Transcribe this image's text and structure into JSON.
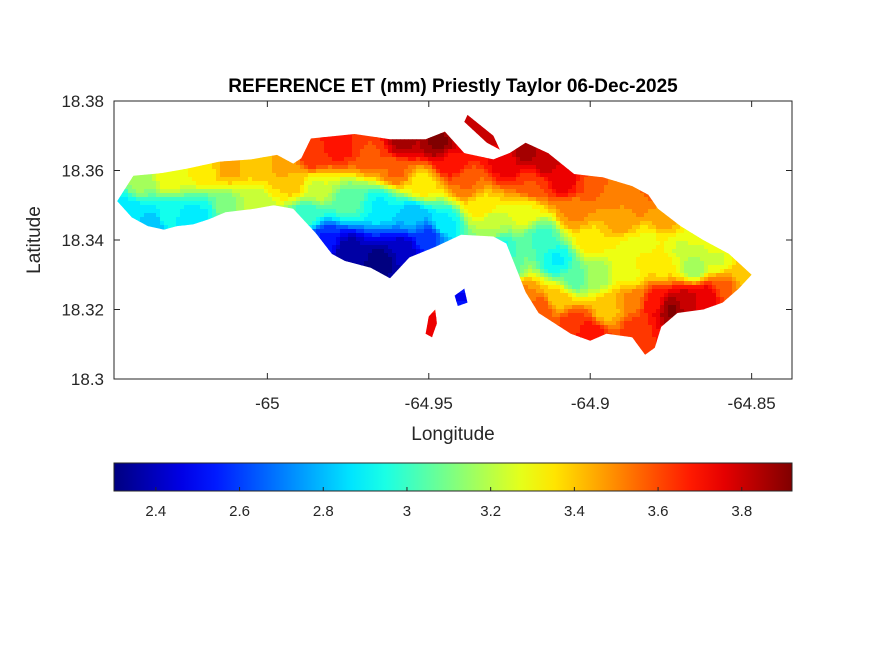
{
  "chart_data": {
    "type": "heatmap",
    "title": "REFERENCE ET (mm) Priestly Taylor 06-Dec-2025",
    "xlabel": "Longitude",
    "ylabel": "Latitude",
    "xlim": [
      -65.0475,
      -64.8375
    ],
    "ylim": [
      18.3,
      18.38
    ],
    "x_ticks": [
      {
        "value": -65,
        "label": "-65"
      },
      {
        "value": -64.95,
        "label": "-64.95"
      },
      {
        "value": -64.9,
        "label": "-64.9"
      },
      {
        "value": -64.85,
        "label": "-64.85"
      }
    ],
    "y_ticks": [
      {
        "value": 18.3,
        "label": "18.3"
      },
      {
        "value": 18.32,
        "label": "18.32"
      },
      {
        "value": 18.34,
        "label": "18.34"
      },
      {
        "value": 18.36,
        "label": "18.36"
      },
      {
        "value": 18.38,
        "label": "18.38"
      }
    ],
    "colormap": "jet",
    "colorbar": {
      "placement": "south",
      "range": [
        2.3,
        3.92
      ],
      "ticks": [
        {
          "value": 2.4,
          "label": "2.4"
        },
        {
          "value": 2.6,
          "label": "2.6"
        },
        {
          "value": 2.8,
          "label": "2.8"
        },
        {
          "value": 3.0,
          "label": "3"
        },
        {
          "value": 3.2,
          "label": "3.2"
        },
        {
          "value": 3.4,
          "label": "3.4"
        },
        {
          "value": 3.6,
          "label": "3.6"
        },
        {
          "value": 3.8,
          "label": "3.8"
        }
      ]
    },
    "grid": false,
    "island_outline": [
      [
        -65.0465,
        18.3512
      ],
      [
        -65.0415,
        18.3585
      ],
      [
        -65.033,
        18.3592
      ],
      [
        -65.025,
        18.3605
      ],
      [
        -65.015,
        18.3625
      ],
      [
        -65.005,
        18.3632
      ],
      [
        -64.997,
        18.3645
      ],
      [
        -64.992,
        18.362
      ],
      [
        -64.9895,
        18.3635
      ],
      [
        -64.9865,
        18.3692
      ],
      [
        -64.973,
        18.3705
      ],
      [
        -64.962,
        18.369
      ],
      [
        -64.951,
        18.369
      ],
      [
        -64.945,
        18.3712
      ],
      [
        -64.939,
        18.365
      ],
      [
        -64.93,
        18.3632
      ],
      [
        -64.925,
        18.365
      ],
      [
        -64.92,
        18.368
      ],
      [
        -64.913,
        18.365
      ],
      [
        -64.905,
        18.359
      ],
      [
        -64.896,
        18.358
      ],
      [
        -64.887,
        18.3555
      ],
      [
        -64.882,
        18.353
      ],
      [
        -64.879,
        18.349
      ],
      [
        -64.872,
        18.344
      ],
      [
        -64.865,
        18.34
      ],
      [
        -64.857,
        18.336
      ],
      [
        -64.85,
        18.33
      ],
      [
        -64.854,
        18.326
      ],
      [
        -64.859,
        18.322
      ],
      [
        -64.865,
        18.32
      ],
      [
        -64.873,
        18.319
      ],
      [
        -64.878,
        18.315
      ],
      [
        -64.88,
        18.309
      ],
      [
        -64.883,
        18.307
      ],
      [
        -64.887,
        18.312
      ],
      [
        -64.895,
        18.313
      ],
      [
        -64.9,
        18.311
      ],
      [
        -64.906,
        18.313
      ],
      [
        -64.916,
        18.319
      ],
      [
        -64.92,
        18.325
      ],
      [
        -64.923,
        18.332
      ],
      [
        -64.926,
        18.339
      ],
      [
        -64.93,
        18.341
      ],
      [
        -64.94,
        18.3415
      ],
      [
        -64.948,
        18.338
      ],
      [
        -64.956,
        18.335
      ],
      [
        -64.962,
        18.329
      ],
      [
        -64.968,
        18.332
      ],
      [
        -64.976,
        18.334
      ],
      [
        -64.98,
        18.336
      ],
      [
        -64.985,
        18.342
      ],
      [
        -64.992,
        18.349
      ],
      [
        -64.998,
        18.35
      ],
      [
        -65.004,
        18.349
      ],
      [
        -65.013,
        18.348
      ],
      [
        -65.018,
        18.346
      ],
      [
        -65.023,
        18.3445
      ],
      [
        -65.028,
        18.344
      ],
      [
        -65.032,
        18.343
      ],
      [
        -65.037,
        18.344
      ],
      [
        -65.042,
        18.3465
      ]
    ],
    "islets": [
      [
        [
          -64.95,
          18.318
        ],
        [
          -64.948,
          18.32
        ],
        [
          -64.9475,
          18.316
        ],
        [
          -64.949,
          18.312
        ],
        [
          -64.951,
          18.313
        ]
      ],
      [
        [
          -64.942,
          18.324
        ],
        [
          -64.939,
          18.326
        ],
        [
          -64.938,
          18.322
        ],
        [
          -64.941,
          18.321
        ]
      ],
      [
        [
          -64.938,
          18.376
        ],
        [
          -64.93,
          18.37
        ],
        [
          -64.928,
          18.366
        ],
        [
          -64.932,
          18.368
        ],
        [
          -64.939,
          18.374
        ]
      ]
    ],
    "value_anchors": [
      [
        -65.045,
        18.3505,
        2.9
      ],
      [
        -65.04,
        18.347,
        2.85
      ],
      [
        -65.036,
        18.344,
        2.8
      ],
      [
        -65.03,
        18.347,
        2.95
      ],
      [
        -65.025,
        18.3455,
        2.85
      ],
      [
        -65.02,
        18.347,
        2.9
      ],
      [
        -65.013,
        18.349,
        3.1
      ],
      [
        -65.005,
        18.35,
        3.2
      ],
      [
        -65.04,
        18.356,
        3.15
      ],
      [
        -65.03,
        18.358,
        3.3
      ],
      [
        -65.02,
        18.36,
        3.35
      ],
      [
        -65.012,
        18.361,
        3.45
      ],
      [
        -65.003,
        18.362,
        3.4
      ],
      [
        -64.995,
        18.3615,
        3.45
      ],
      [
        -64.992,
        18.356,
        3.4
      ],
      [
        -64.988,
        18.348,
        3.0
      ],
      [
        -64.982,
        18.34,
        2.55
      ],
      [
        -64.975,
        18.337,
        2.35
      ],
      [
        -64.965,
        18.334,
        2.3
      ],
      [
        -64.958,
        18.337,
        2.4
      ],
      [
        -64.95,
        18.341,
        2.6
      ],
      [
        -64.945,
        18.345,
        2.9
      ],
      [
        -64.955,
        18.347,
        2.8
      ],
      [
        -64.965,
        18.35,
        2.9
      ],
      [
        -64.975,
        18.351,
        3.05
      ],
      [
        -64.985,
        18.355,
        3.25
      ],
      [
        -64.986,
        18.364,
        3.65
      ],
      [
        -64.978,
        18.367,
        3.7
      ],
      [
        -64.968,
        18.365,
        3.6
      ],
      [
        -64.96,
        18.36,
        3.55
      ],
      [
        -64.952,
        18.356,
        3.35
      ],
      [
        -64.958,
        18.368,
        3.85
      ],
      [
        -64.947,
        18.368,
        3.9
      ],
      [
        -64.943,
        18.362,
        3.7
      ],
      [
        -64.938,
        18.356,
        3.55
      ],
      [
        -64.934,
        18.35,
        3.35
      ],
      [
        -64.93,
        18.344,
        3.2
      ],
      [
        -64.928,
        18.338,
        2.95
      ],
      [
        -64.925,
        18.331,
        3.05
      ],
      [
        -64.921,
        18.325,
        3.5
      ],
      [
        -64.926,
        18.362,
        3.75
      ],
      [
        -64.92,
        18.365,
        3.85
      ],
      [
        -64.914,
        18.362,
        3.8
      ],
      [
        -64.918,
        18.356,
        3.6
      ],
      [
        -64.92,
        18.348,
        3.3
      ],
      [
        -64.915,
        18.341,
        3.0
      ],
      [
        -64.91,
        18.334,
        2.9
      ],
      [
        -64.905,
        18.329,
        3.05
      ],
      [
        -64.91,
        18.323,
        3.4
      ],
      [
        -64.915,
        18.32,
        3.6
      ],
      [
        -64.905,
        18.316,
        3.65
      ],
      [
        -64.9,
        18.313,
        3.7
      ],
      [
        -64.895,
        18.32,
        3.4
      ],
      [
        -64.898,
        18.33,
        3.15
      ],
      [
        -64.9,
        18.34,
        3.35
      ],
      [
        -64.905,
        18.348,
        3.5
      ],
      [
        -64.908,
        18.357,
        3.75
      ],
      [
        -64.9,
        18.356,
        3.6
      ],
      [
        -64.893,
        18.352,
        3.5
      ],
      [
        -64.89,
        18.345,
        3.45
      ],
      [
        -64.888,
        18.338,
        3.3
      ],
      [
        -64.888,
        18.33,
        3.3
      ],
      [
        -64.887,
        18.323,
        3.5
      ],
      [
        -64.885,
        18.314,
        3.65
      ],
      [
        -64.88,
        18.322,
        3.7
      ],
      [
        -64.875,
        18.32,
        3.9
      ],
      [
        -64.87,
        18.323,
        3.8
      ],
      [
        -64.864,
        18.324,
        3.75
      ],
      [
        -64.858,
        18.327,
        3.55
      ],
      [
        -64.853,
        18.33,
        3.4
      ],
      [
        -64.86,
        18.334,
        3.25
      ],
      [
        -64.868,
        18.332,
        3.15
      ],
      [
        -64.872,
        18.337,
        3.25
      ],
      [
        -64.878,
        18.333,
        3.35
      ],
      [
        -64.882,
        18.34,
        3.3
      ],
      [
        -64.878,
        18.346,
        3.45
      ],
      [
        -64.885,
        18.35,
        3.5
      ],
      [
        -64.882,
        18.353,
        3.55
      ],
      [
        -64.949,
        18.316,
        3.75
      ],
      [
        -64.94,
        18.3235,
        2.5
      ],
      [
        -64.933,
        18.371,
        3.8
      ]
    ]
  }
}
